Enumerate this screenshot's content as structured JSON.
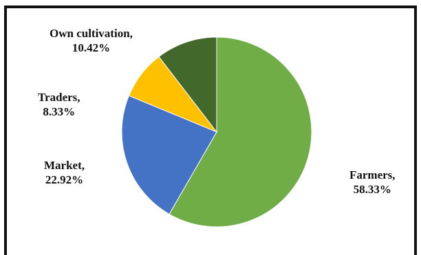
{
  "chart_data": {
    "type": "pie",
    "categories": [
      "Farmers",
      "Market",
      "Traders",
      "Own cultivation"
    ],
    "values": [
      58.33,
      22.92,
      8.33,
      10.42
    ],
    "data_labels": [
      {
        "name": "Farmers,",
        "value": "58.33%"
      },
      {
        "name": "Market,",
        "value": "22.92%"
      },
      {
        "name": "Traders,",
        "value": "8.33%"
      },
      {
        "name": "Own cultivation,",
        "value": "10.42%"
      }
    ],
    "colors": [
      "#70ad47",
      "#4472c4",
      "#ffc000",
      "#43682b"
    ],
    "start_angle_deg": 0,
    "direction": "clockwise",
    "title": "",
    "legend": "none"
  }
}
